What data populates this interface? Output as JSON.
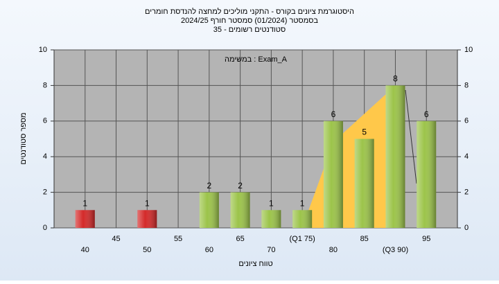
{
  "chart_data": {
    "type": "bar",
    "title": "היסטוגרמת ציונים בקורס - התקני מוליכים למחצה להנדסת חומרים",
    "subtitle": "בסמסטר  (01/2024)  סמסטר חורף 2024/25",
    "subtitle2": "סטודנטים רשומים - 35",
    "annotation": "במשימה : Exam_A",
    "y_label": "מספר סטודנטים",
    "x_label": "טווח ציונים",
    "categories": [
      "40",
      "45",
      "50",
      "55",
      "60",
      "65",
      "70",
      "(Q1 75)",
      "80",
      "85",
      "(Q3 90)",
      "95"
    ],
    "values": [
      1,
      null,
      1,
      null,
      2,
      2,
      1,
      1,
      6,
      5,
      8,
      6
    ],
    "colors": [
      "#d42a2a",
      null,
      "#d42a2a",
      null,
      "#9cc44a",
      "#9cc44a",
      "#9cc44a",
      "#9cc44a",
      "#9cc44a",
      "#9cc44a",
      "#9cc44a",
      "#9cc44a"
    ],
    "ylim": [
      0,
      10
    ],
    "yticks": [
      0,
      2,
      4,
      6,
      8,
      10
    ],
    "grid": true
  }
}
